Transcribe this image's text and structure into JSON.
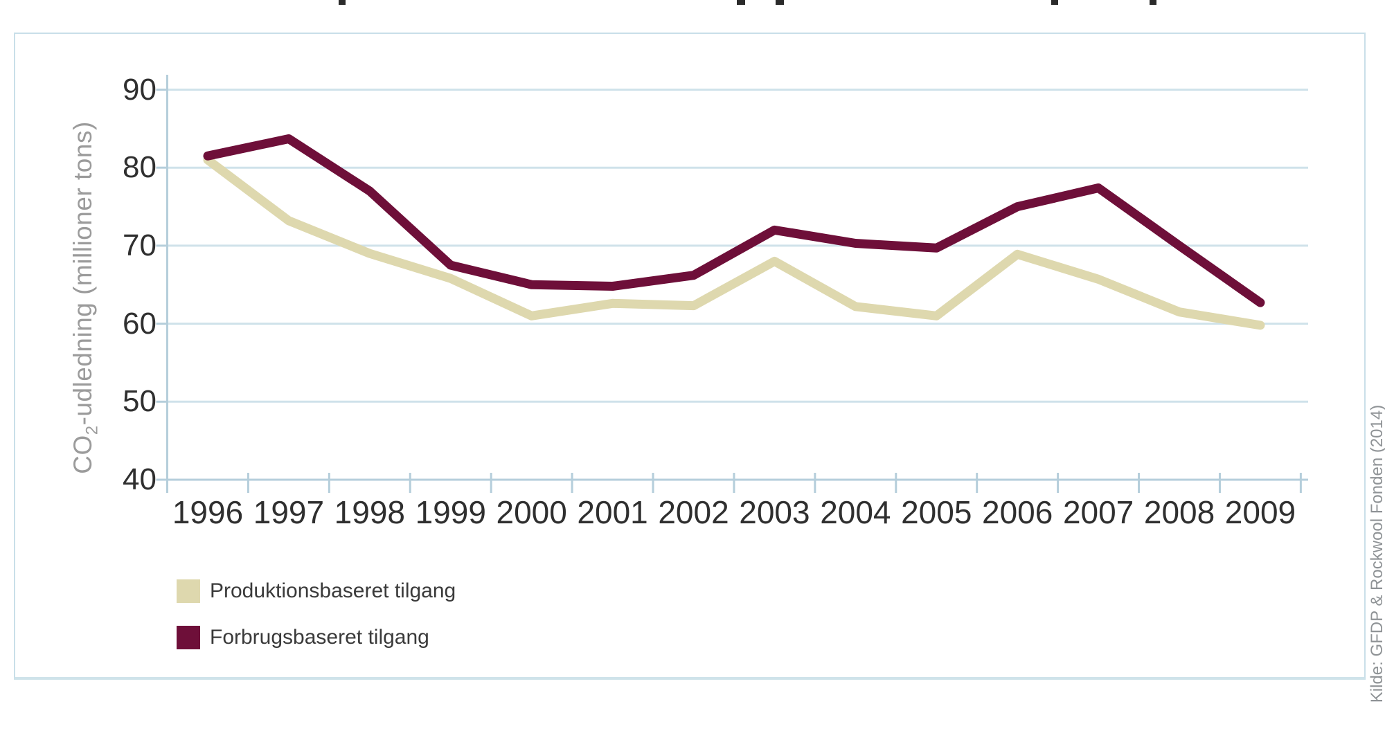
{
  "colors": {
    "gridline": "#cfe2ea",
    "axis": "#b5cedb",
    "panel_border": "#c9dfe9",
    "tick_text": "#2f2f2f",
    "muted_text": "#9b9b9b",
    "production_series": "#ded8ae",
    "consumption_series": "#6e0f39"
  },
  "chart_data": {
    "type": "line",
    "title": "",
    "xlabel": "",
    "ylabel": "CO₂-udledning (millioner tons)",
    "x": [
      1996,
      1997,
      1998,
      1999,
      2000,
      2001,
      2002,
      2003,
      2004,
      2005,
      2006,
      2007,
      2008,
      2009
    ],
    "yticks": [
      90,
      80,
      70,
      60,
      50,
      40
    ],
    "ylim": [
      40,
      93
    ],
    "grid": "horizontal gridlines at each y tick",
    "legend_position": "below plot, bottom-left",
    "series": [
      {
        "name": "Produktionsbaseret tilgang",
        "color": "#ded8ae",
        "values": [
          81.0,
          73.2,
          69.0,
          65.8,
          61.0,
          62.6,
          62.3,
          68.0,
          62.2,
          61.0,
          68.9,
          65.7,
          61.5,
          59.8
        ]
      },
      {
        "name": "Forbrugsbaseret tilgang",
        "color": "#6e0f39",
        "values": [
          81.5,
          83.7,
          77.0,
          67.5,
          65.0,
          64.8,
          66.2,
          72.0,
          70.3,
          69.7,
          75.0,
          77.4,
          70.0,
          62.7
        ]
      }
    ],
    "source": "Kilde: GFDP & Rockwool Fonden (2014)"
  }
}
